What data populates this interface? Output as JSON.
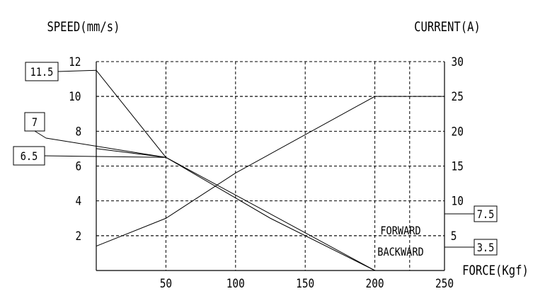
{
  "chart_data": {
    "type": "line",
    "y_title": "SPEED(mm/s)",
    "y2_title": "CURRENT(A)",
    "x_title": "FORCE(Kgf)",
    "xlim": [
      0,
      250
    ],
    "ylim": [
      0,
      12
    ],
    "y2lim": [
      0,
      30
    ],
    "x_ticks": [
      "50",
      "100",
      "150",
      "200",
      "250"
    ],
    "x_tick_values": [
      50,
      100,
      150,
      200,
      250
    ],
    "y_ticks": [
      "2",
      "4",
      "6",
      "8",
      "10",
      "12"
    ],
    "y_tick_values": [
      2,
      4,
      6,
      8,
      10,
      12
    ],
    "y2_ticks": [
      "5",
      "10",
      "15",
      "20",
      "25",
      "30"
    ],
    "y2_tick_values": [
      5,
      10,
      15,
      20,
      25,
      30
    ],
    "grid": true,
    "series": [
      {
        "axis": "left",
        "points": [
          [
            0,
            11.5
          ],
          [
            50,
            6.5
          ],
          [
            125,
            3.0
          ],
          [
            200,
            0
          ]
        ]
      },
      {
        "axis": "left",
        "points": [
          [
            0,
            7.0
          ],
          [
            50,
            6.5
          ],
          [
            200,
            0
          ]
        ]
      },
      {
        "axis": "right",
        "points": [
          [
            0,
            3.5
          ],
          [
            50,
            7.5
          ],
          [
            100,
            14.0
          ],
          [
            200,
            25.0
          ],
          [
            250,
            25.0
          ]
        ]
      }
    ],
    "callouts_left": [
      {
        "label": "11.5",
        "value": 11.5
      },
      {
        "label": "7",
        "value": 7.0
      },
      {
        "label": "6.5",
        "value": 6.5
      }
    ],
    "callouts_right": [
      {
        "label": "7.5",
        "value": 7.5
      },
      {
        "label": "3.5",
        "value": 3.5
      }
    ],
    "annotations": [
      "FORWARD",
      "BACKWARD"
    ]
  }
}
